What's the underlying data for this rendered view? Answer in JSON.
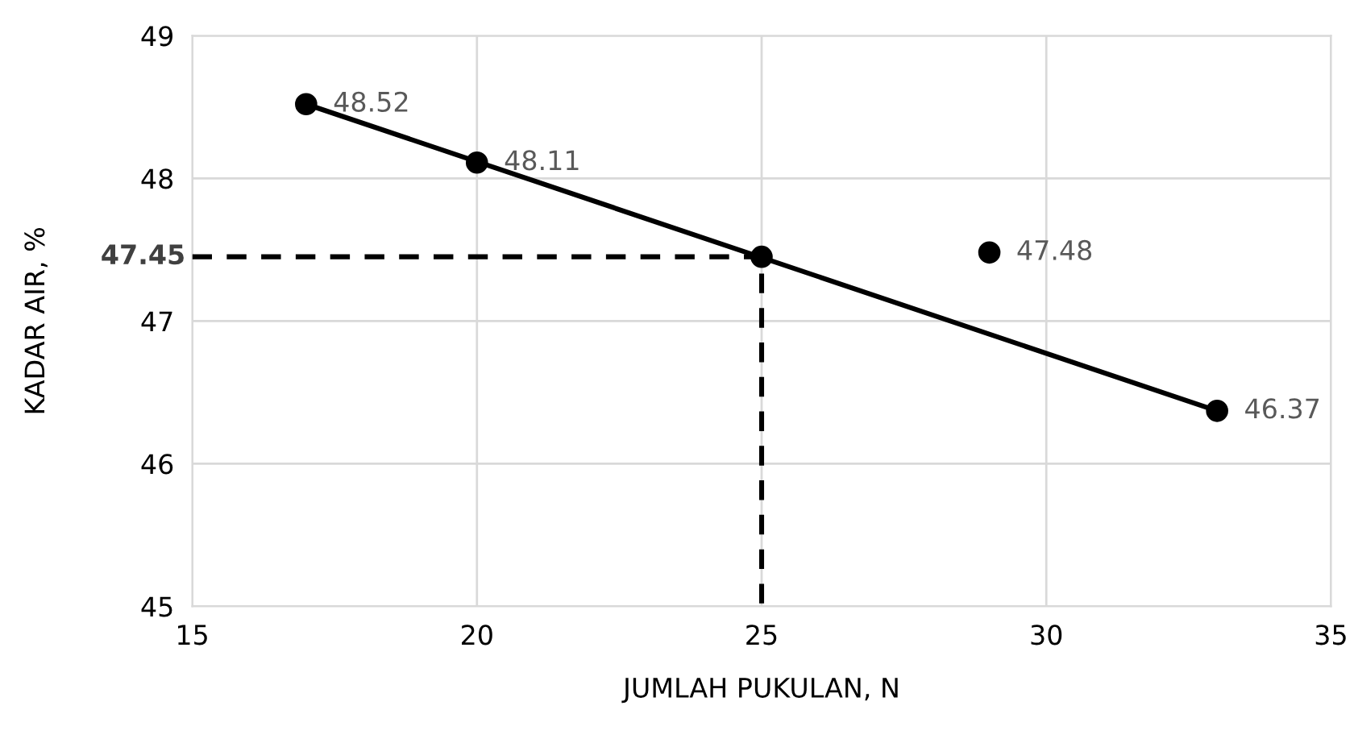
{
  "chart_data": {
    "type": "scatter",
    "xlabel": "JUMLAH PUKULAN, N",
    "ylabel": "KADAR AIR, %",
    "xlim": [
      15,
      35
    ],
    "xticks": [
      15,
      20,
      25,
      30,
      35
    ],
    "ylim": [
      45,
      49
    ],
    "yticks": [
      45,
      46,
      47,
      48,
      49
    ],
    "grid": true,
    "marker": "circle",
    "series": [
      {
        "color": "#000000",
        "x": [
          17,
          20,
          25,
          29,
          33
        ],
        "values": [
          48.52,
          48.11,
          47.45,
          47.48,
          46.37
        ],
        "value_labels": [
          "48.52",
          "48.11",
          null,
          "47.48",
          "46.37"
        ]
      },
      {
        "type": "line",
        "color": "#000000",
        "marker": "none",
        "line_style": "solid",
        "x": [
          17,
          33
        ],
        "values": [
          48.52,
          46.37
        ]
      },
      {
        "type": "line",
        "color": "#000000",
        "marker": "none",
        "line_style": "dashed",
        "x": [
          15,
          25,
          25
        ],
        "values": [
          47.45,
          47.45,
          45
        ]
      }
    ],
    "annotations": [
      {
        "text": "47.45",
        "x": 15,
        "y": 47.45
      }
    ]
  }
}
